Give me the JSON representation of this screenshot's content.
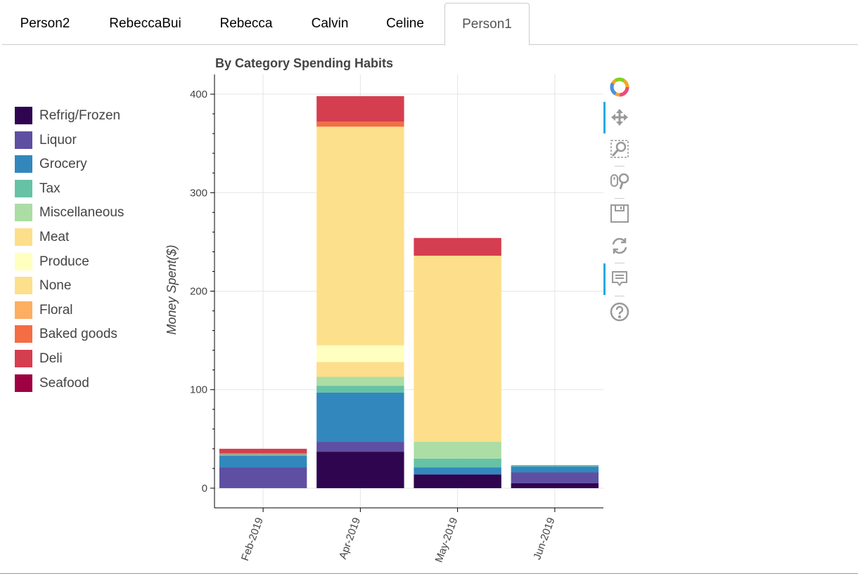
{
  "tabs": [
    {
      "label": "Person2"
    },
    {
      "label": "RebeccaBui"
    },
    {
      "label": "Rebecca"
    },
    {
      "label": "Calvin"
    },
    {
      "label": "Celine"
    },
    {
      "label": "Person1",
      "active": true
    }
  ],
  "toolbar": {
    "tools": [
      {
        "icon": "bokeh-logo-icon",
        "active": false
      },
      {
        "icon": "pan-icon",
        "active": true
      },
      {
        "icon": "box-zoom-icon",
        "active": false
      },
      {
        "icon": "wheel-zoom-icon",
        "active": false
      },
      {
        "icon": "save-icon",
        "active": false
      },
      {
        "icon": "reset-icon",
        "active": false
      },
      {
        "icon": "hover-icon",
        "active": true
      },
      {
        "icon": "help-icon",
        "active": false
      }
    ]
  },
  "chart_data": {
    "type": "bar",
    "stacked": true,
    "title": "By Category Spending Habits",
    "xlabel": "",
    "ylabel": "Money Spent($)",
    "ylim": [
      -20,
      420
    ],
    "yticks": [
      0,
      100,
      200,
      300,
      400
    ],
    "categories": [
      "Feb-2019",
      "Apr-2019",
      "May-2019",
      "Jun-2019"
    ],
    "grid": true,
    "legend_position": "left",
    "series": [
      {
        "name": "Refrig/Frozen",
        "color": "#2f0550",
        "values": [
          0,
          37,
          14,
          5
        ]
      },
      {
        "name": "Liquor",
        "color": "#5e4fa2",
        "values": [
          21,
          10,
          0,
          11
        ]
      },
      {
        "name": "Grocery",
        "color": "#3288bd",
        "values": [
          12,
          50,
          7,
          6
        ]
      },
      {
        "name": "Tax",
        "color": "#66c2a5",
        "values": [
          1.5,
          7,
          9,
          1.5
        ]
      },
      {
        "name": "Miscellaneous",
        "color": "#abdda4",
        "values": [
          0,
          9,
          17,
          0
        ]
      },
      {
        "name": "Meat",
        "color": "#fdde8b",
        "values": [
          0,
          15,
          189,
          0
        ]
      },
      {
        "name": "Produce",
        "color": "#ffffbf",
        "values": [
          0,
          17,
          0,
          0
        ]
      },
      {
        "name": "None",
        "color": "#fde08b",
        "values": [
          0,
          222,
          0,
          0
        ]
      },
      {
        "name": "Floral",
        "color": "#fdae61",
        "values": [
          0,
          0,
          0,
          0
        ]
      },
      {
        "name": "Baked goods",
        "color": "#f46d43",
        "values": [
          1,
          5,
          0,
          0
        ]
      },
      {
        "name": "Deli",
        "color": "#d53e4f",
        "values": [
          4.5,
          26,
          18,
          0
        ]
      },
      {
        "name": "Seafood",
        "color": "#9e0142",
        "values": [
          0,
          0,
          0,
          0
        ]
      }
    ]
  }
}
